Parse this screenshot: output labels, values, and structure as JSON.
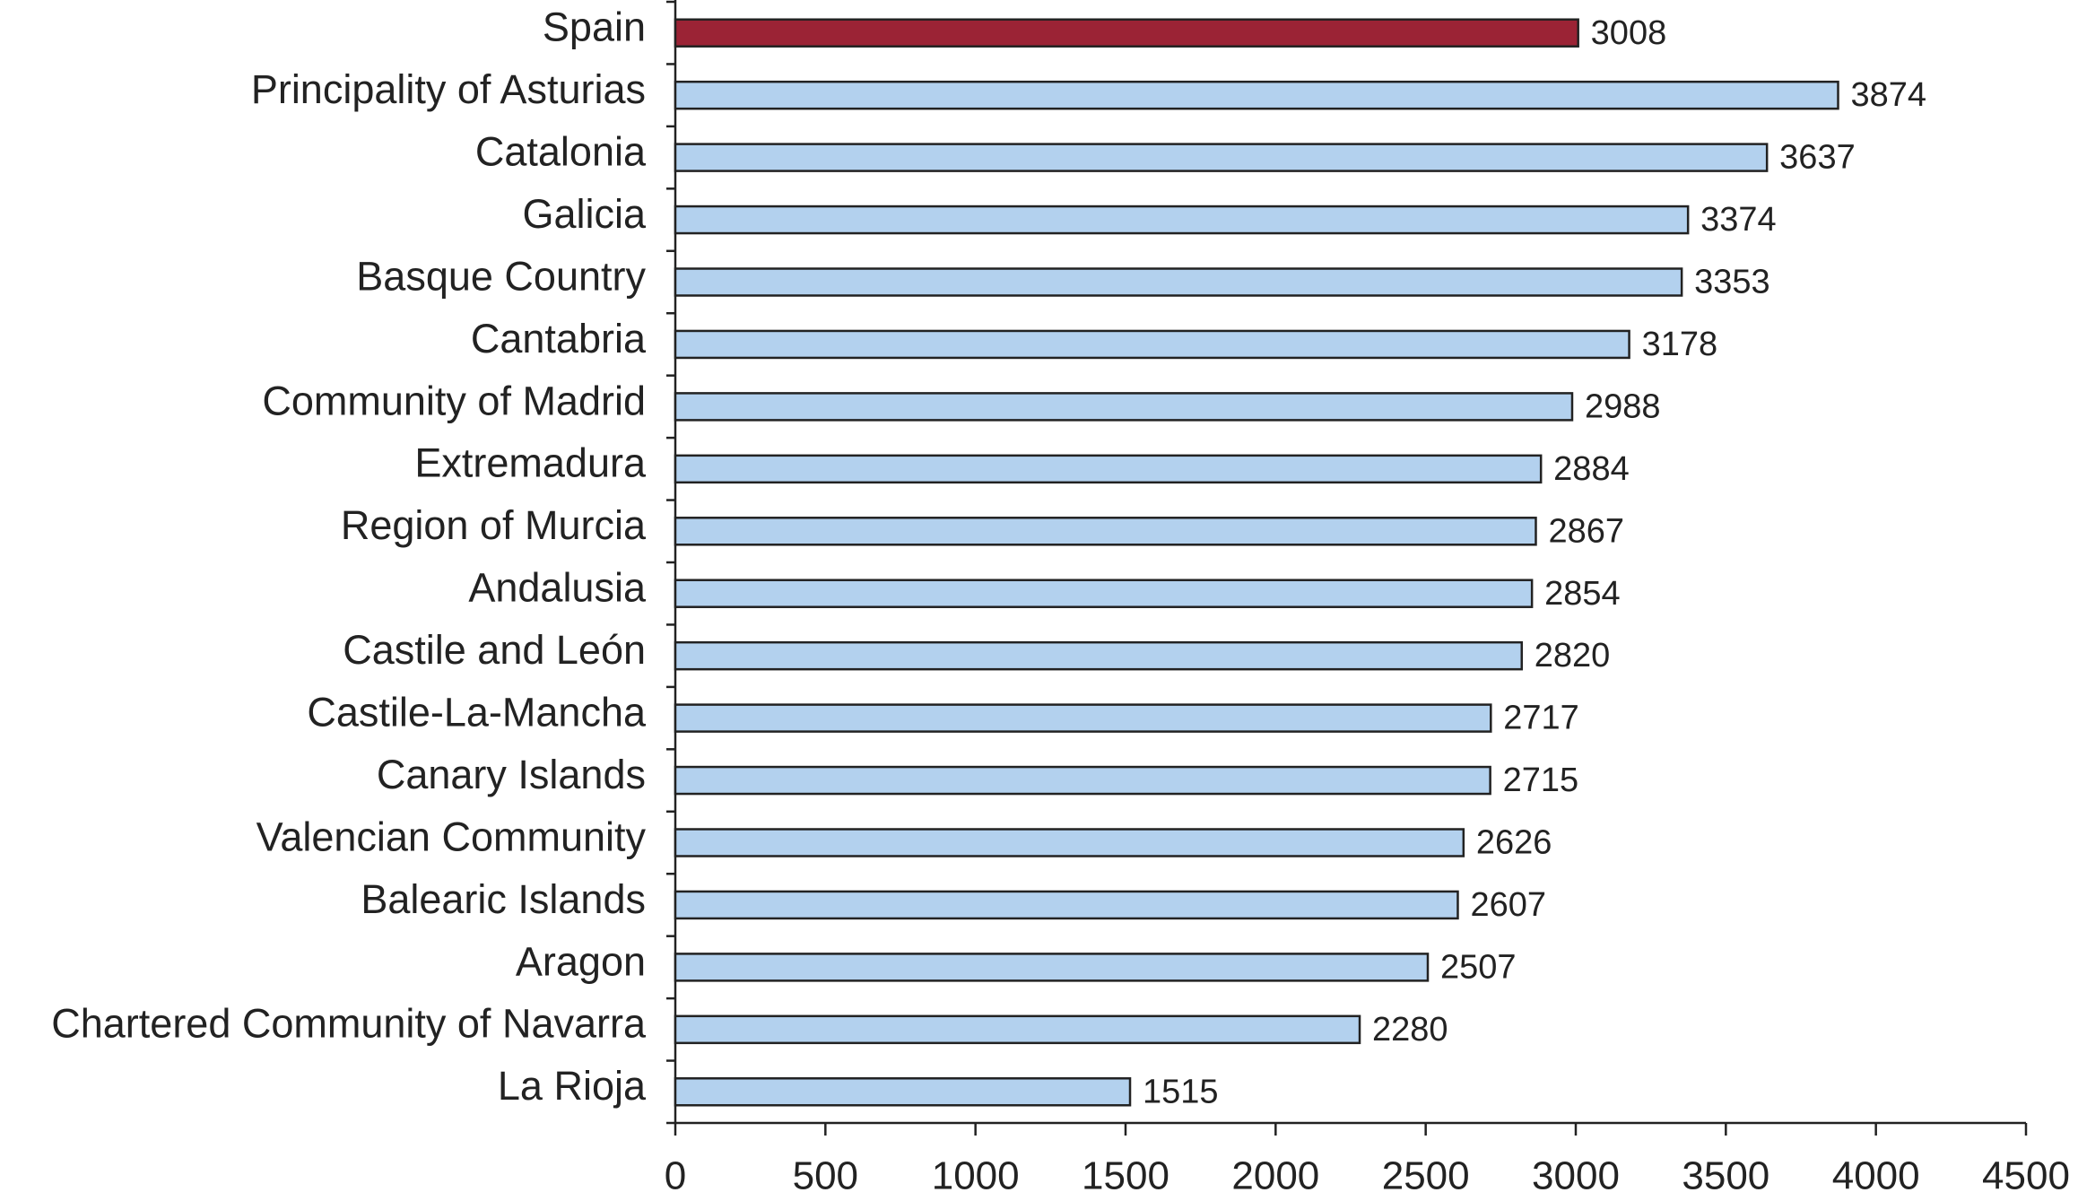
{
  "chart_data": {
    "type": "bar",
    "orientation": "horizontal",
    "categories": [
      "Spain",
      "Principality of Asturias",
      "Catalonia",
      "Galicia",
      "Basque Country",
      "Cantabria",
      "Community of Madrid",
      "Extremadura",
      "Region of Murcia",
      "Andalusia",
      "Castile and León",
      "Castile-La-Mancha",
      "Canary Islands",
      "Valencian Community",
      "Balearic Islands",
      "Aragon",
      "Chartered Community of Navarra",
      "La Rioja"
    ],
    "values": [
      3008,
      3874,
      3637,
      3374,
      3353,
      3178,
      2988,
      2884,
      2867,
      2854,
      2820,
      2717,
      2715,
      2626,
      2607,
      2507,
      2280,
      1515
    ],
    "colors": [
      "#9b2335",
      "#b3d1ee",
      "#b3d1ee",
      "#b3d1ee",
      "#b3d1ee",
      "#b3d1ee",
      "#b3d1ee",
      "#b3d1ee",
      "#b3d1ee",
      "#b3d1ee",
      "#b3d1ee",
      "#b3d1ee",
      "#b3d1ee",
      "#b3d1ee",
      "#b3d1ee",
      "#b3d1ee",
      "#b3d1ee",
      "#b3d1ee"
    ],
    "xlim": [
      0,
      4500
    ],
    "xticks": [
      0,
      500,
      1000,
      1500,
      2000,
      2500,
      3000,
      3500,
      4000,
      4500
    ],
    "grid": false
  }
}
